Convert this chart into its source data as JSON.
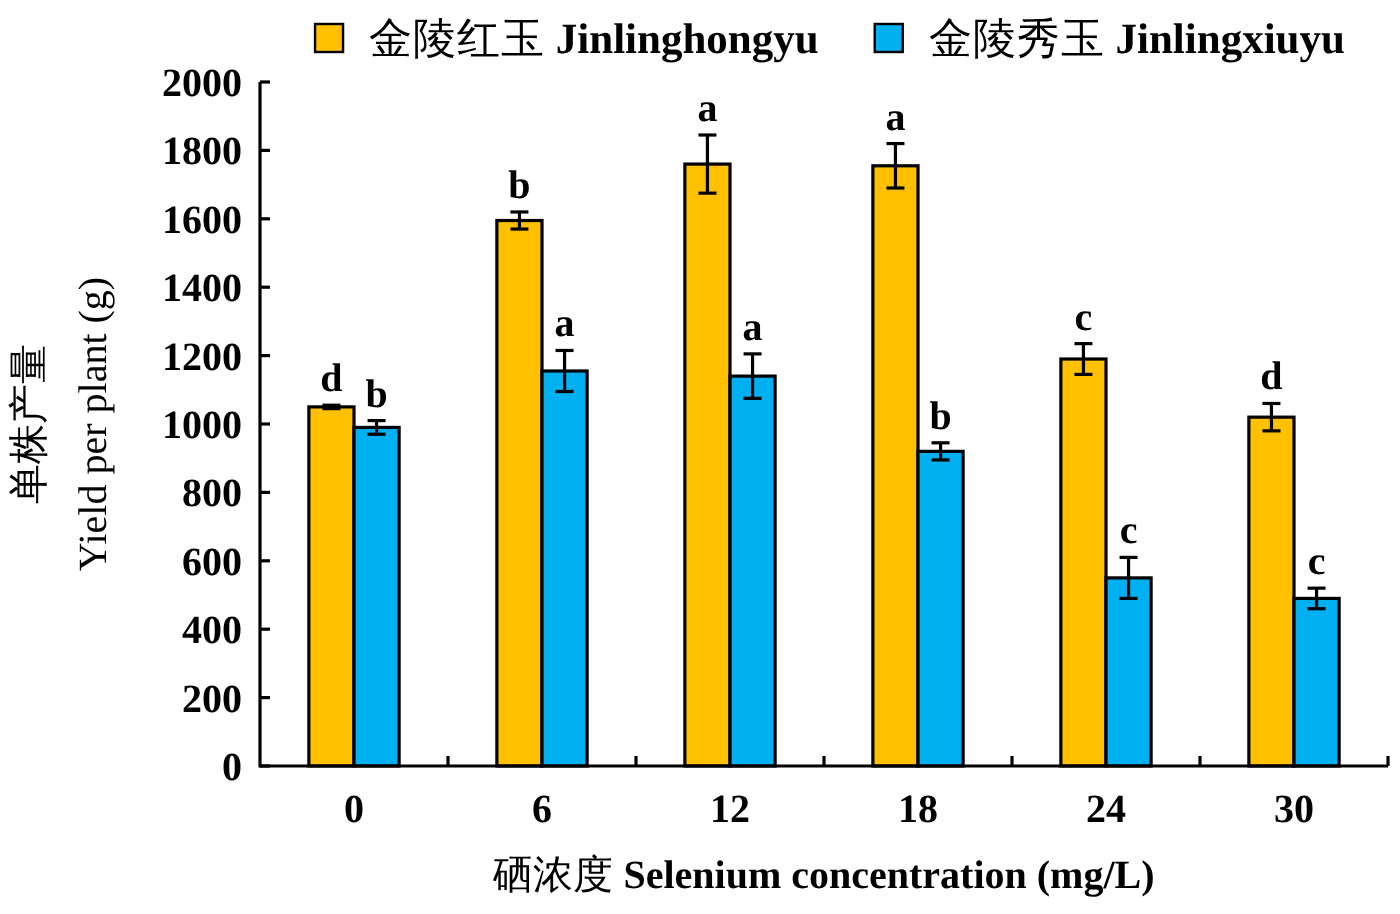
{
  "chart_data": {
    "type": "bar",
    "categories": [
      "0",
      "6",
      "12",
      "18",
      "24",
      "30"
    ],
    "xlabel": "硒浓度 Selenium concentration (mg/L)",
    "ylabel": "单株产量\nYield per plant (g)",
    "ylim": [
      0,
      2000
    ],
    "yticks": [
      0,
      200,
      400,
      600,
      800,
      1000,
      1200,
      1400,
      1600,
      1800,
      2000
    ],
    "legend": "top",
    "grid": false,
    "series": [
      {
        "name": "金陵红玉 Jinlinghongyu",
        "color": "#ffc000",
        "values": [
          1050,
          1595,
          1760,
          1755,
          1190,
          1020
        ],
        "errors": [
          5,
          25,
          85,
          65,
          45,
          40
        ],
        "value_labels": [
          "d",
          "b",
          "a",
          "a",
          "c",
          "d"
        ]
      },
      {
        "name": "金陵秀玉 Jinlingxiuyu",
        "color": "#00b0f0",
        "values": [
          990,
          1155,
          1140,
          920,
          550,
          490
        ],
        "errors": [
          20,
          60,
          65,
          25,
          60,
          30
        ],
        "value_labels": [
          "b",
          "a",
          "a",
          "b",
          "c",
          "c"
        ]
      }
    ]
  }
}
